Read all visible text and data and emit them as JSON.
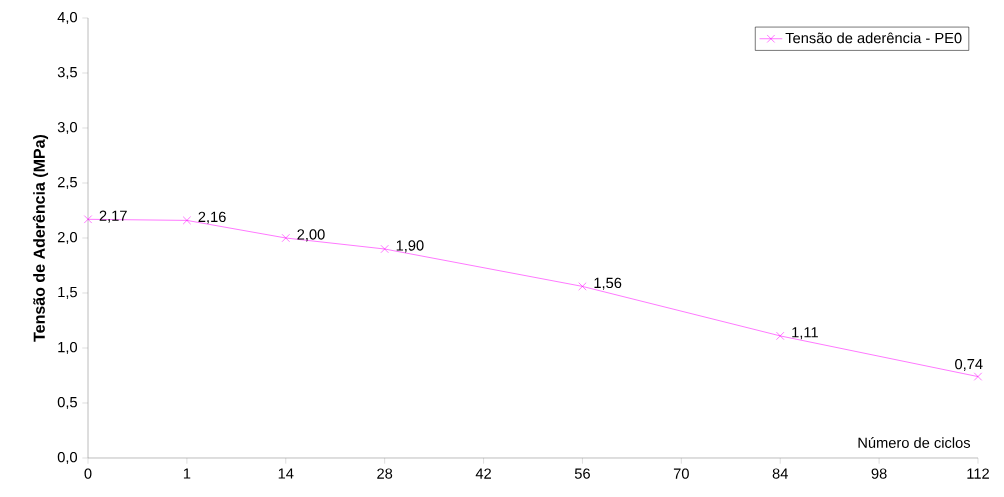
{
  "chart_data": {
    "type": "line",
    "categories": [
      "0",
      "1",
      "14",
      "28",
      "42",
      "56",
      "70",
      "84",
      "98",
      "112"
    ],
    "series": [
      {
        "name": "Tensão de aderência - PE0",
        "color": "#ff00ff",
        "values": [
          2.17,
          2.16,
          2.0,
          1.9,
          null,
          1.56,
          null,
          1.11,
          null,
          0.74
        ],
        "value_labels": [
          "2,17",
          "2,16",
          "2,00",
          "1,90",
          null,
          "1,56",
          null,
          "1,11",
          null,
          "0,74"
        ]
      }
    ],
    "xlabel": "Número de ciclos",
    "ylabel": "Tensão de Aderência (MPa)",
    "ylim": [
      0,
      4
    ],
    "yticks": [
      {
        "value": 0,
        "label": "0,0"
      },
      {
        "value": 0.5,
        "label": "0,5"
      },
      {
        "value": 1,
        "label": "1,0"
      },
      {
        "value": 1.5,
        "label": "1,5"
      },
      {
        "value": 2,
        "label": "2,0"
      },
      {
        "value": 2.5,
        "label": "2,5"
      },
      {
        "value": 3,
        "label": "3,0"
      },
      {
        "value": 3.5,
        "label": "3,5"
      },
      {
        "value": 4,
        "label": "4,0"
      }
    ],
    "grid": false,
    "legend": "top right",
    "marker": "cross",
    "line_style": "solid"
  }
}
